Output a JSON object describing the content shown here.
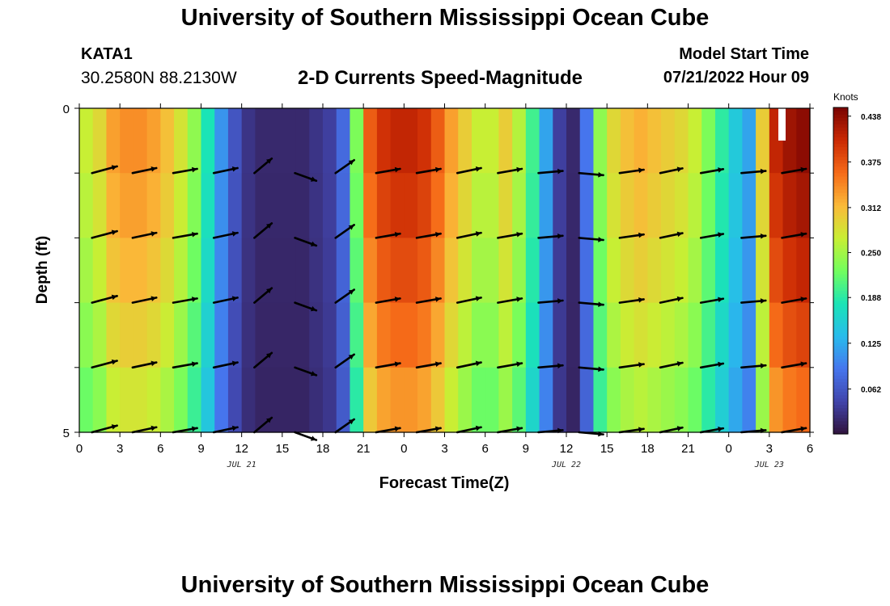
{
  "header": {
    "title": "University of Southern Mississippi Ocean Cube",
    "station": "KATA1",
    "coords": "30.2580N  88.2130W",
    "subtitle": "2-D Currents Speed-Magnitude",
    "model_start_label": "Model Start Time",
    "model_start_value": "07/21/2022 Hour 09"
  },
  "footer": {
    "title": "University of Southern Mississippi Ocean Cube"
  },
  "chart_data": {
    "type": "heatmap",
    "title": "2-D Currents Speed-Magnitude",
    "xlabel": "Forecast Time(Z)",
    "ylabel": "Depth (ft)",
    "x_hours_from_start": [
      0,
      3,
      6,
      9,
      12,
      15,
      18,
      21,
      24,
      27,
      30,
      33,
      36,
      39,
      42,
      45,
      48,
      51,
      54
    ],
    "x_tick_labels": [
      "0",
      "3",
      "6",
      "9",
      "12",
      "15",
      "18",
      "21",
      "0",
      "3",
      "6",
      "9",
      "12",
      "15",
      "18",
      "21",
      "0",
      "3",
      "6"
    ],
    "date_labels": [
      {
        "label": "JUL 21",
        "hour": 12
      },
      {
        "label": "JUL 22",
        "hour": 36
      },
      {
        "label": "JUL 23",
        "hour": 51
      }
    ],
    "y_tick_labels": [
      "0",
      "5"
    ],
    "ylim": [
      0,
      5
    ],
    "colorbar": {
      "label": "Knots",
      "ticks": [
        "0.438",
        "0.375",
        "0.312",
        "0.250",
        "0.188",
        "0.125",
        "0.062"
      ],
      "tick_values": [
        0.438,
        0.375,
        0.312,
        0.25,
        0.188,
        0.125,
        0.062
      ],
      "range": [
        0,
        0.45
      ]
    },
    "speed_knots_by_hour": [
      0.27,
      0.29,
      0.33,
      0.34,
      0.34,
      0.33,
      0.31,
      0.28,
      0.24,
      0.18,
      0.11,
      0.06,
      0.03,
      0.02,
      0.02,
      0.02,
      0.02,
      0.03,
      0.04,
      0.08,
      0.23,
      0.37,
      0.4,
      0.41,
      0.41,
      0.4,
      0.37,
      0.33,
      0.3,
      0.27,
      0.27,
      0.3,
      0.26,
      0.2,
      0.12,
      0.04,
      0.02,
      0.09,
      0.24,
      0.29,
      0.31,
      0.32,
      0.31,
      0.3,
      0.29,
      0.27,
      0.23,
      0.19,
      0.15,
      0.12,
      0.3,
      0.41,
      0.43,
      0.44,
      0.43
    ],
    "depth_factor": [
      1.0,
      0.97,
      0.93,
      0.88,
      0.82
    ],
    "vectors": {
      "depth_rows": [
        1,
        2,
        3,
        4,
        5
      ],
      "hours": [
        1,
        4,
        7,
        10,
        13,
        16,
        19,
        22,
        25,
        28,
        31,
        34,
        37,
        40,
        43,
        46,
        49,
        52
      ],
      "direction_deg": [
        15,
        12,
        10,
        12,
        40,
        -20,
        35,
        10,
        10,
        12,
        10,
        5,
        -5,
        8,
        12,
        10,
        5,
        10
      ],
      "length_px": [
        32,
        30,
        30,
        30,
        28,
        28,
        28,
        30,
        30,
        30,
        30,
        30,
        30,
        30,
        28,
        28,
        30,
        30
      ]
    }
  }
}
